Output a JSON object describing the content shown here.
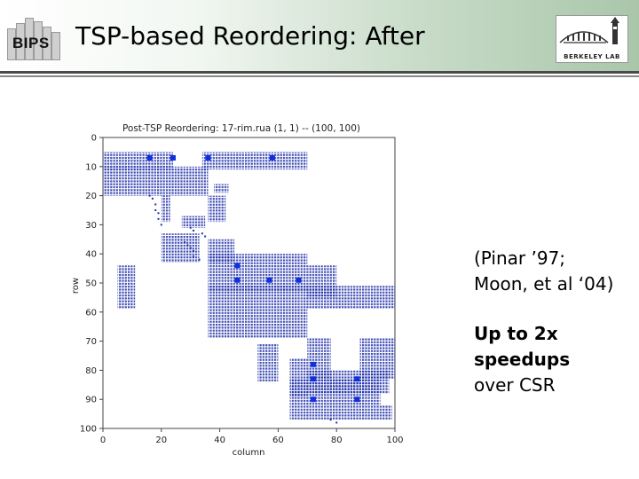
{
  "header": {
    "left_logo_text": "BIPS",
    "title": "TSP-based Reordering: After",
    "right_logo_text": "BERKELEY LAB"
  },
  "chart_data": {
    "type": "heatmap",
    "title": "Post-TSP Reordering: 17-rim.rua (1, 1) -- (100, 100)",
    "xlabel": "column",
    "ylabel": "row",
    "xlim": [
      0,
      100
    ],
    "ylim": [
      0,
      100
    ],
    "x_ticks": [
      "0",
      "20",
      "40",
      "60",
      "80",
      "100"
    ],
    "y_ticks": [
      "0",
      "10",
      "20",
      "30",
      "40",
      "50",
      "60",
      "70",
      "80",
      "90",
      "100"
    ],
    "color": "#1f2fa8",
    "blocks": [
      {
        "r0": 5,
        "r1": 11,
        "c0": 0,
        "c1": 24
      },
      {
        "r0": 5,
        "r1": 11,
        "c0": 34,
        "c1": 70
      },
      {
        "r0": 10,
        "r1": 20,
        "c0": 0,
        "c1": 36
      },
      {
        "r0": 16,
        "r1": 19,
        "c0": 38,
        "c1": 43
      },
      {
        "r0": 20,
        "r1": 29,
        "c0": 20,
        "c1": 23
      },
      {
        "r0": 20,
        "r1": 29,
        "c0": 36,
        "c1": 42
      },
      {
        "r0": 27,
        "r1": 31,
        "c0": 27,
        "c1": 35
      },
      {
        "r0": 33,
        "r1": 43,
        "c0": 20,
        "c1": 33
      },
      {
        "r0": 35,
        "r1": 43,
        "c0": 36,
        "c1": 45
      },
      {
        "r0": 40,
        "r1": 53,
        "c0": 36,
        "c1": 70
      },
      {
        "r0": 44,
        "r1": 59,
        "c0": 5,
        "c1": 11
      },
      {
        "r0": 44,
        "r1": 55,
        "c0": 70,
        "c1": 80
      },
      {
        "r0": 51,
        "r1": 59,
        "c0": 36,
        "c1": 68
      },
      {
        "r0": 51,
        "r1": 59,
        "c0": 68,
        "c1": 100
      },
      {
        "r0": 59,
        "r1": 69,
        "c0": 36,
        "c1": 44
      },
      {
        "r0": 59,
        "r1": 69,
        "c0": 44,
        "c1": 70
      },
      {
        "r0": 69,
        "r1": 83,
        "c0": 70,
        "c1": 78
      },
      {
        "r0": 69,
        "r1": 83,
        "c0": 88,
        "c1": 100
      },
      {
        "r0": 71,
        "r1": 84,
        "c0": 53,
        "c1": 60
      },
      {
        "r0": 76,
        "r1": 89,
        "c0": 64,
        "c1": 70
      },
      {
        "r0": 80,
        "r1": 88,
        "c0": 70,
        "c1": 98
      },
      {
        "r0": 83,
        "r1": 97,
        "c0": 64,
        "c1": 95
      },
      {
        "r0": 92,
        "r1": 97,
        "c0": 95,
        "c1": 99
      }
    ],
    "marks": [
      {
        "r": 7,
        "c": 16
      },
      {
        "r": 7,
        "c": 24
      },
      {
        "r": 7,
        "c": 36
      },
      {
        "r": 7,
        "c": 58
      },
      {
        "r": 44,
        "c": 46
      },
      {
        "r": 49,
        "c": 46
      },
      {
        "r": 49,
        "c": 57
      },
      {
        "r": 49,
        "c": 67
      },
      {
        "r": 78,
        "c": 72
      },
      {
        "r": 83,
        "c": 72
      },
      {
        "r": 83,
        "c": 87
      },
      {
        "r": 90,
        "c": 72
      },
      {
        "r": 90,
        "c": 87
      }
    ],
    "scatter": [
      {
        "r": 20,
        "c": 16
      },
      {
        "r": 21,
        "c": 17
      },
      {
        "r": 23,
        "c": 18
      },
      {
        "r": 25,
        "c": 18
      },
      {
        "r": 26,
        "c": 19
      },
      {
        "r": 28,
        "c": 19
      },
      {
        "r": 30,
        "c": 20
      },
      {
        "r": 31,
        "c": 30
      },
      {
        "r": 32,
        "c": 31
      },
      {
        "r": 33,
        "c": 34
      },
      {
        "r": 34,
        "c": 35
      },
      {
        "r": 36,
        "c": 28
      },
      {
        "r": 37,
        "c": 29
      },
      {
        "r": 38,
        "c": 30
      },
      {
        "r": 39,
        "c": 31
      },
      {
        "r": 41,
        "c": 31
      },
      {
        "r": 42,
        "c": 33
      },
      {
        "r": 97,
        "c": 78
      },
      {
        "r": 98,
        "c": 80
      }
    ]
  },
  "notes": {
    "reference_line1": "(Pinar ’97;",
    "reference_line2": "Moon, et al ‘04)",
    "speedup_line1": "Up to 2x",
    "speedup_line2": "speedups",
    "speedup_line3": "over CSR"
  }
}
